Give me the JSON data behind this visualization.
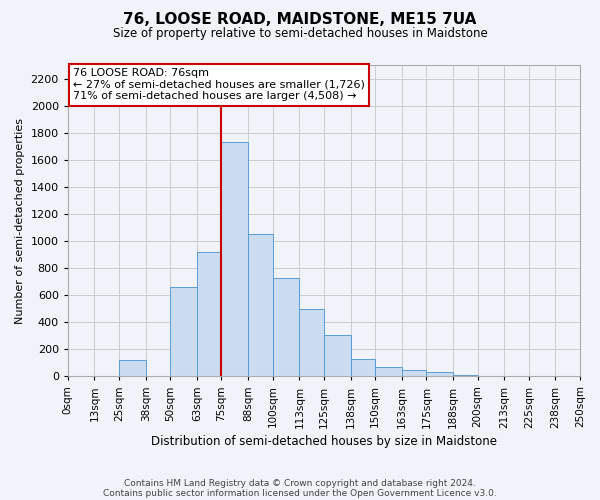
{
  "title": "76, LOOSE ROAD, MAIDSTONE, ME15 7UA",
  "subtitle": "Size of property relative to semi-detached houses in Maidstone",
  "xlabel": "Distribution of semi-detached houses by size in Maidstone",
  "ylabel": "Number of semi-detached properties",
  "footer_line1": "Contains HM Land Registry data © Crown copyright and database right 2024.",
  "footer_line2": "Contains public sector information licensed under the Open Government Licence v3.0.",
  "annotation_title": "76 LOOSE ROAD: 76sqm",
  "annotation_line1": "← 27% of semi-detached houses are smaller (1,726)",
  "annotation_line2": "71% of semi-detached houses are larger (4,508) →",
  "bar_color": "#ccdcf0",
  "bar_edge_color": "#5b9bd5",
  "vline_color": "#cc0000",
  "vline_x": 75,
  "bin_edges": [
    0,
    13,
    25,
    38,
    50,
    63,
    75,
    88,
    100,
    113,
    125,
    138,
    150,
    163,
    175,
    188,
    200,
    213,
    225,
    238,
    250
  ],
  "bin_labels": [
    "0sqm",
    "13sqm",
    "25sqm",
    "38sqm",
    "50sqm",
    "63sqm",
    "75sqm",
    "88sqm",
    "100sqm",
    "113sqm",
    "125sqm",
    "138sqm",
    "150sqm",
    "163sqm",
    "175sqm",
    "188sqm",
    "200sqm",
    "213sqm",
    "225sqm",
    "238sqm",
    "250sqm"
  ],
  "counts": [
    0,
    0,
    120,
    0,
    660,
    920,
    1730,
    1050,
    730,
    500,
    305,
    125,
    70,
    50,
    35,
    10,
    0,
    0,
    0,
    5
  ],
  "ylim": [
    0,
    2300
  ],
  "yticks": [
    0,
    200,
    400,
    600,
    800,
    1000,
    1200,
    1400,
    1600,
    1800,
    2000,
    2200
  ],
  "annotation_box_color": "white",
  "annotation_box_edgecolor": "#cc0000",
  "grid_color": "#cccccc",
  "background_color": "#f0f4fa"
}
